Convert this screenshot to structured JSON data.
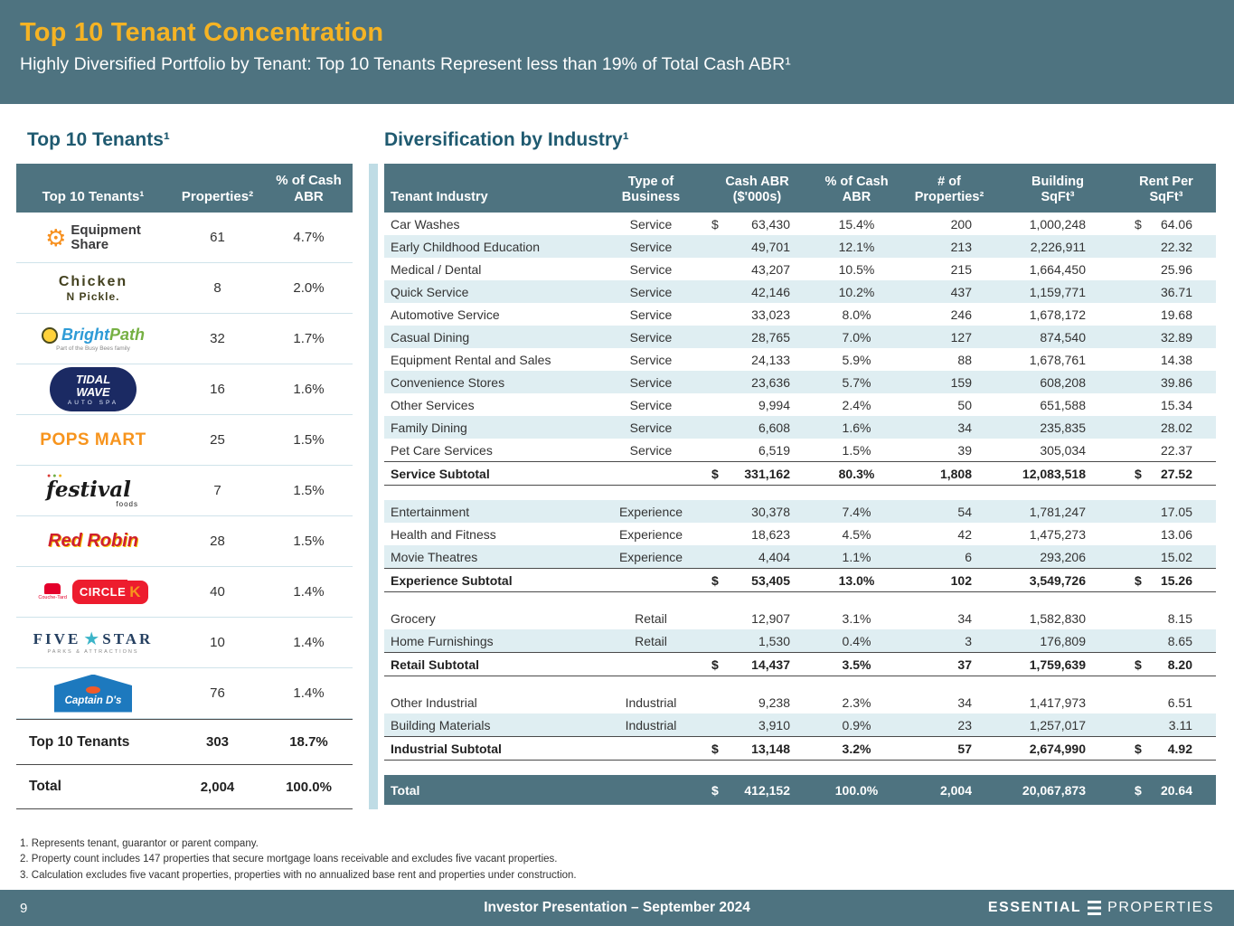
{
  "header": {
    "title": "Top 10 Tenant Concentration",
    "subtitle": "Highly Diversified Portfolio by Tenant: Top 10 Tenants Represent less than 19% of Total Cash ABR¹"
  },
  "left_table": {
    "section_title": "Top 10 Tenants¹",
    "columns": [
      "Top 10 Tenants¹",
      "Properties²",
      "% of Cash\nABR"
    ],
    "rows": [
      {
        "props": "61",
        "abr": "4.7%",
        "logo": {
          "cls": "logo-es",
          "name": "equipmentshare-logo",
          "parts": [
            {
              "cls": "es-gear",
              "text": "⚙"
            },
            {
              "cls": "es-txt",
              "text": "Equipment\nShare"
            }
          ]
        }
      },
      {
        "props": "8",
        "abr": "2.0%",
        "logo": {
          "cls": "logo-cnp",
          "name": "chicken-n-pickle-logo",
          "parts": [
            {
              "cls": "cnp1",
              "text": "Chicken"
            },
            {
              "cls": "cnp2",
              "text": "N Pickle."
            }
          ]
        }
      },
      {
        "props": "32",
        "abr": "1.7%",
        "logo": {
          "cls": "logo-bp",
          "name": "brightpath-logo",
          "parts": [
            {
              "cls": "bp-bee",
              "text": ""
            },
            {
              "cls": "bp1",
              "text": "Bright"
            },
            {
              "cls": "bp2",
              "text": "Path"
            },
            {
              "cls": "bp-tag",
              "text": "Part of the Busy Bees family"
            }
          ]
        }
      },
      {
        "props": "16",
        "abr": "1.6%",
        "logo": {
          "cls": "logo-tw",
          "name": "tidal-wave-auto-spa-logo",
          "parts": [
            {
              "cls": "tw1",
              "text": "TIDAL\nWAVE"
            },
            {
              "cls": "tw2",
              "text": "AUTO SPA"
            }
          ]
        }
      },
      {
        "props": "25",
        "abr": "1.5%",
        "logo": {
          "cls": "logo-pops",
          "name": "pops-mart-logo",
          "parts": [
            {
              "cls": "pops",
              "text": "POPS MART"
            }
          ]
        }
      },
      {
        "props": "7",
        "abr": "1.5%",
        "logo": {
          "cls": "logo-fest",
          "name": "festival-foods-logo",
          "parts": [
            {
              "cls": "fd fd1",
              "text": "●"
            },
            {
              "cls": "fd fd2",
              "text": "●"
            },
            {
              "cls": "fd fd3",
              "text": "●"
            },
            {
              "cls": "fe1",
              "text": "festival"
            },
            {
              "cls": "fe2",
              "text": "foods"
            }
          ]
        }
      },
      {
        "props": "28",
        "abr": "1.5%",
        "logo": {
          "cls": "logo-rr",
          "name": "red-robin-logo",
          "parts": [
            {
              "cls": "rr",
              "text": "Red Robin"
            }
          ]
        }
      },
      {
        "props": "40",
        "abr": "1.4%",
        "logo": {
          "cls": "logo-ck",
          "name": "circle-k-logo",
          "parts": [
            {
              "cls": "ct-label",
              "text": "Couche-Tard"
            },
            {
              "cls": "ck-circle",
              "text": "CIRCLE"
            },
            {
              "cls": "ck-k",
              "text": "K"
            }
          ]
        }
      },
      {
        "props": "10",
        "abr": "1.4%",
        "logo": {
          "cls": "logo-fs",
          "name": "five-star-logo",
          "parts": [
            {
              "cls": "fs1",
              "text": "FIVE"
            },
            {
              "cls": "fs-star",
              "text": "★"
            },
            {
              "cls": "fs2",
              "text": "STAR"
            },
            {
              "cls": "fs-tag",
              "text": "PARKS & ATTRACTIONS"
            }
          ]
        }
      },
      {
        "props": "76",
        "abr": "1.4%",
        "logo": {
          "cls": "logo-cd",
          "name": "captain-ds-logo",
          "parts": [
            {
              "cls": "cd-fish",
              "text": ""
            },
            {
              "cls": "cd1",
              "text": "Captain D's"
            }
          ]
        }
      }
    ],
    "summary": [
      {
        "label": "Top 10 Tenants",
        "props": "303",
        "abr": "18.7%"
      },
      {
        "label": "Total",
        "props": "2,004",
        "abr": "100.0%"
      }
    ]
  },
  "right_table": {
    "section_title": "Diversification by Industry¹",
    "columns": [
      "Tenant Industry",
      "Type of\nBusiness",
      "Cash ABR\n($'000s)",
      "% of Cash\nABR",
      "# of\nProperties²",
      "Building\nSqFt³",
      "Rent Per\nSqFt³"
    ],
    "groups": [
      {
        "rows": [
          {
            "industry": "Car Washes",
            "type": "Service",
            "abr_d": "$",
            "abr": "63,430",
            "pct": "15.4%",
            "props": "200",
            "sqft": "1,000,248",
            "rent_d": "$",
            "rent": "64.06"
          },
          {
            "industry": "Early Childhood Education",
            "type": "Service",
            "abr_d": "",
            "abr": "49,701",
            "pct": "12.1%",
            "props": "213",
            "sqft": "2,226,911",
            "rent_d": "",
            "rent": "22.32"
          },
          {
            "industry": "Medical / Dental",
            "type": "Service",
            "abr_d": "",
            "abr": "43,207",
            "pct": "10.5%",
            "props": "215",
            "sqft": "1,664,450",
            "rent_d": "",
            "rent": "25.96"
          },
          {
            "industry": "Quick Service",
            "type": "Service",
            "abr_d": "",
            "abr": "42,146",
            "pct": "10.2%",
            "props": "437",
            "sqft": "1,159,771",
            "rent_d": "",
            "rent": "36.71"
          },
          {
            "industry": "Automotive Service",
            "type": "Service",
            "abr_d": "",
            "abr": "33,023",
            "pct": "8.0%",
            "props": "246",
            "sqft": "1,678,172",
            "rent_d": "",
            "rent": "19.68"
          },
          {
            "industry": "Casual Dining",
            "type": "Service",
            "abr_d": "",
            "abr": "28,765",
            "pct": "7.0%",
            "props": "127",
            "sqft": "874,540",
            "rent_d": "",
            "rent": "32.89"
          },
          {
            "industry": "Equipment Rental and Sales",
            "type": "Service",
            "abr_d": "",
            "abr": "24,133",
            "pct": "5.9%",
            "props": "88",
            "sqft": "1,678,761",
            "rent_d": "",
            "rent": "14.38"
          },
          {
            "industry": "Convenience Stores",
            "type": "Service",
            "abr_d": "",
            "abr": "23,636",
            "pct": "5.7%",
            "props": "159",
            "sqft": "608,208",
            "rent_d": "",
            "rent": "39.86"
          },
          {
            "industry": "Other Services",
            "type": "Service",
            "abr_d": "",
            "abr": "9,994",
            "pct": "2.4%",
            "props": "50",
            "sqft": "651,588",
            "rent_d": "",
            "rent": "15.34"
          },
          {
            "industry": "Family Dining",
            "type": "Service",
            "abr_d": "",
            "abr": "6,608",
            "pct": "1.6%",
            "props": "34",
            "sqft": "235,835",
            "rent_d": "",
            "rent": "28.02"
          },
          {
            "industry": "Pet Care Services",
            "type": "Service",
            "abr_d": "",
            "abr": "6,519",
            "pct": "1.5%",
            "props": "39",
            "sqft": "305,034",
            "rent_d": "",
            "rent": "22.37"
          }
        ],
        "subtotal": {
          "industry": "Service Subtotal",
          "type": "",
          "abr_d": "$",
          "abr": "331,162",
          "pct": "80.3%",
          "props": "1,808",
          "sqft": "12,083,518",
          "rent_d": "$",
          "rent": "27.52"
        }
      },
      {
        "rows": [
          {
            "industry": "Entertainment",
            "type": "Experience",
            "abr_d": "",
            "abr": "30,378",
            "pct": "7.4%",
            "props": "54",
            "sqft": "1,781,247",
            "rent_d": "",
            "rent": "17.05"
          },
          {
            "industry": "Health and Fitness",
            "type": "Experience",
            "abr_d": "",
            "abr": "18,623",
            "pct": "4.5%",
            "props": "42",
            "sqft": "1,475,273",
            "rent_d": "",
            "rent": "13.06"
          },
          {
            "industry": "Movie Theatres",
            "type": "Experience",
            "abr_d": "",
            "abr": "4,404",
            "pct": "1.1%",
            "props": "6",
            "sqft": "293,206",
            "rent_d": "",
            "rent": "15.02"
          }
        ],
        "subtotal": {
          "industry": "Experience Subtotal",
          "type": "",
          "abr_d": "$",
          "abr": "53,405",
          "pct": "13.0%",
          "props": "102",
          "sqft": "3,549,726",
          "rent_d": "$",
          "rent": "15.26"
        }
      },
      {
        "rows": [
          {
            "industry": "Grocery",
            "type": "Retail",
            "abr_d": "",
            "abr": "12,907",
            "pct": "3.1%",
            "props": "34",
            "sqft": "1,582,830",
            "rent_d": "",
            "rent": "8.15"
          },
          {
            "industry": "Home Furnishings",
            "type": "Retail",
            "abr_d": "",
            "abr": "1,530",
            "pct": "0.4%",
            "props": "3",
            "sqft": "176,809",
            "rent_d": "",
            "rent": "8.65"
          }
        ],
        "subtotal": {
          "industry": "Retail Subtotal",
          "type": "",
          "abr_d": "$",
          "abr": "14,437",
          "pct": "3.5%",
          "props": "37",
          "sqft": "1,759,639",
          "rent_d": "$",
          "rent": "8.20"
        }
      },
      {
        "rows": [
          {
            "industry": "Other Industrial",
            "type": "Industrial",
            "abr_d": "",
            "abr": "9,238",
            "pct": "2.3%",
            "props": "34",
            "sqft": "1,417,973",
            "rent_d": "",
            "rent": "6.51"
          },
          {
            "industry": "Building Materials",
            "type": "Industrial",
            "abr_d": "",
            "abr": "3,910",
            "pct": "0.9%",
            "props": "23",
            "sqft": "1,257,017",
            "rent_d": "",
            "rent": "3.11"
          }
        ],
        "subtotal": {
          "industry": "Industrial Subtotal",
          "type": "",
          "abr_d": "$",
          "abr": "13,148",
          "pct": "3.2%",
          "props": "57",
          "sqft": "2,674,990",
          "rent_d": "$",
          "rent": "4.92"
        }
      }
    ],
    "total": {
      "industry": "Total",
      "type": "",
      "abr_d": "$",
      "abr": "412,152",
      "pct": "100.0%",
      "props": "2,004",
      "sqft": "20,067,873",
      "rent_d": "$",
      "rent": "20.64"
    }
  },
  "footnotes": [
    "1. Represents tenant, guarantor or parent company.",
    "2. Property count includes 147 properties that secure mortgage loans receivable and excludes five vacant properties.",
    "3. Calculation excludes five vacant properties, properties with no annualized base rent and properties under construction."
  ],
  "footer": {
    "page": "9",
    "center": "Investor Presentation – September 2024",
    "brand_left": "ESSENTIAL",
    "brand_right": "PROPERTIES"
  },
  "colors": {
    "slate": "#4E7380",
    "gold": "#F5B324",
    "row_alt": "#DFEEF2",
    "section_title": "#1F5A70"
  }
}
